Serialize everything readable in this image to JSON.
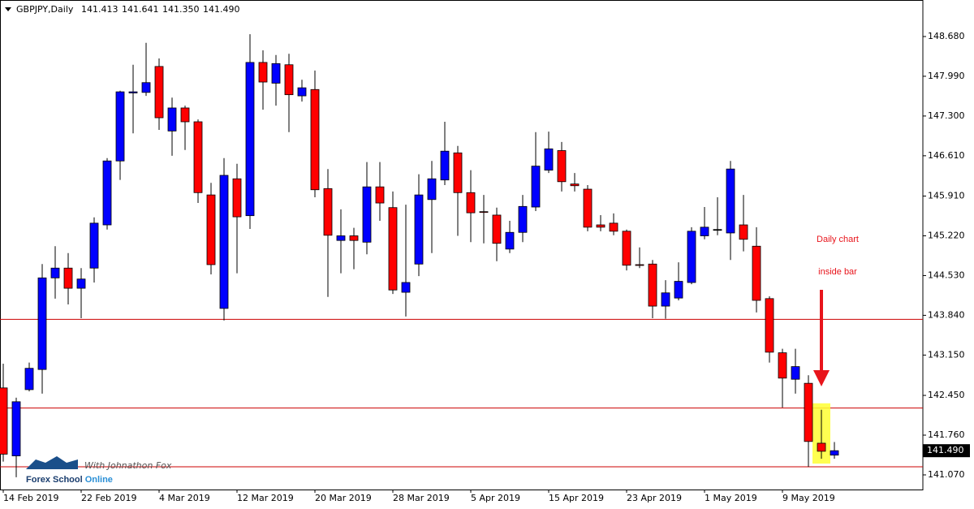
{
  "chart_data": {
    "type": "candlestick",
    "symbol": "GBPJPY,Daily",
    "header_ohlc": [
      "141.413",
      "141.641",
      "141.350",
      "141.490"
    ],
    "categories": [
      "14 Feb 2019",
      null,
      null,
      null,
      null,
      null,
      "22 Feb 2019",
      null,
      null,
      null,
      null,
      null,
      "4 Mar 2019",
      null,
      null,
      null,
      null,
      null,
      "12 Mar 2019",
      null,
      null,
      null,
      null,
      null,
      "20 Mar 2019",
      null,
      null,
      null,
      null,
      null,
      "28 Mar 2019",
      null,
      null,
      null,
      null,
      null,
      "5 Apr 2019",
      null,
      null,
      null,
      null,
      null,
      "15 Apr 2019",
      null,
      null,
      null,
      null,
      null,
      "23 Apr 2019",
      null,
      null,
      null,
      null,
      null,
      "1 May 2019",
      null,
      null,
      null,
      null,
      null,
      "9 May 2019",
      null,
      null,
      null,
      null
    ],
    "open": [
      142.58,
      141.4,
      142.55,
      142.9,
      144.49,
      144.66,
      144.31,
      144.66,
      145.41,
      146.52,
      147.7,
      147.71,
      148.16,
      147.04,
      147.44,
      147.2,
      145.93,
      143.96,
      146.21,
      145.57,
      148.23,
      147.87,
      148.19,
      147.65,
      147.76,
      146.04,
      145.14,
      145.22,
      145.11,
      146.07,
      145.71,
      144.24,
      144.73,
      145.85,
      146.19,
      146.66,
      145.97,
      145.64,
      145.58,
      144.99,
      145.28,
      145.72,
      146.36,
      146.7,
      146.12,
      146.03,
      145.41,
      145.44,
      145.3,
      144.72,
      144.73,
      144.0,
      144.14,
      144.41,
      145.22,
      145.33,
      145.27,
      145.41,
      145.04,
      144.13,
      143.19,
      142.73,
      142.66,
      141.62,
      141.413
    ],
    "high": [
      143.0,
      142.41,
      143.02,
      144.73,
      145.04,
      144.92,
      144.66,
      145.54,
      146.57,
      147.74,
      148.19,
      148.57,
      148.3,
      147.62,
      147.48,
      147.24,
      146.14,
      146.57,
      146.47,
      148.72,
      148.44,
      148.36,
      148.38,
      147.93,
      148.09,
      146.38,
      145.68,
      145.36,
      146.5,
      146.5,
      145.99,
      145.76,
      146.29,
      146.52,
      147.2,
      146.78,
      146.36,
      145.93,
      145.71,
      145.48,
      145.93,
      147.02,
      147.03,
      146.85,
      146.31,
      146.1,
      145.58,
      145.61,
      145.33,
      145.02,
      144.8,
      144.45,
      144.76,
      145.37,
      145.72,
      145.89,
      146.52,
      145.93,
      145.37,
      144.17,
      143.26,
      143.26,
      142.8,
      142.2,
      141.641
    ],
    "low": [
      141.3,
      141.03,
      142.52,
      142.48,
      144.13,
      144.03,
      143.79,
      144.41,
      145.33,
      146.19,
      147.0,
      147.65,
      147.06,
      146.61,
      146.71,
      145.79,
      144.55,
      143.75,
      144.57,
      145.34,
      147.41,
      147.48,
      147.02,
      147.55,
      145.89,
      144.16,
      144.57,
      144.64,
      144.9,
      145.48,
      144.21,
      143.82,
      144.52,
      144.92,
      146.1,
      145.22,
      145.11,
      145.09,
      144.78,
      144.92,
      145.11,
      145.65,
      146.31,
      145.99,
      145.99,
      145.3,
      145.3,
      145.23,
      144.62,
      144.66,
      143.79,
      143.78,
      144.1,
      144.38,
      145.16,
      145.23,
      144.8,
      144.95,
      143.89,
      143.02,
      142.24,
      142.48,
      141.21,
      141.35,
      141.35
    ],
    "close": [
      141.43,
      142.34,
      142.92,
      144.49,
      144.66,
      144.31,
      144.47,
      145.44,
      146.52,
      147.72,
      147.72,
      147.88,
      147.27,
      147.44,
      147.2,
      145.97,
      144.72,
      146.27,
      145.55,
      148.23,
      147.89,
      148.21,
      147.67,
      147.79,
      146.02,
      145.23,
      145.22,
      145.14,
      146.07,
      145.79,
      144.28,
      144.41,
      145.93,
      146.21,
      146.69,
      145.97,
      145.62,
      145.63,
      145.09,
      145.28,
      145.73,
      146.43,
      146.73,
      146.16,
      146.09,
      145.37,
      145.37,
      145.3,
      144.71,
      144.71,
      144.0,
      144.23,
      144.43,
      145.3,
      145.37,
      145.33,
      146.38,
      145.16,
      144.1,
      143.2,
      142.75,
      142.95,
      141.65,
      141.48,
      141.49
    ],
    "bull_color": "#0000ff",
    "bear_color": "#ff0000",
    "hlines": [
      143.77,
      142.23,
      141.21
    ],
    "hline_color": "#cc0000",
    "ylim": [
      140.816,
      149.314
    ],
    "yticks": [
      {
        "value": 141.07,
        "label": "141.070"
      },
      {
        "value": 141.76,
        "label": "141.760"
      },
      {
        "value": 142.45,
        "label": "142.450"
      },
      {
        "value": 143.15,
        "label": "143.150"
      },
      {
        "value": 143.84,
        "label": "143.840"
      },
      {
        "value": 144.53,
        "label": "144.530"
      },
      {
        "value": 145.22,
        "label": "145.220"
      },
      {
        "value": 145.91,
        "label": "145.910"
      },
      {
        "value": 146.61,
        "label": "146.610"
      },
      {
        "value": 147.3,
        "label": "147.300"
      },
      {
        "value": 147.99,
        "label": "147.990"
      },
      {
        "value": 148.68,
        "label": "148.680"
      }
    ],
    "annotation": [
      "Daily chart",
      "inside bar"
    ],
    "highlight_index": 63,
    "logo": {
      "tagline": "With Johnathon Fox",
      "name": "Forex School",
      "name_accent": "Online"
    }
  }
}
